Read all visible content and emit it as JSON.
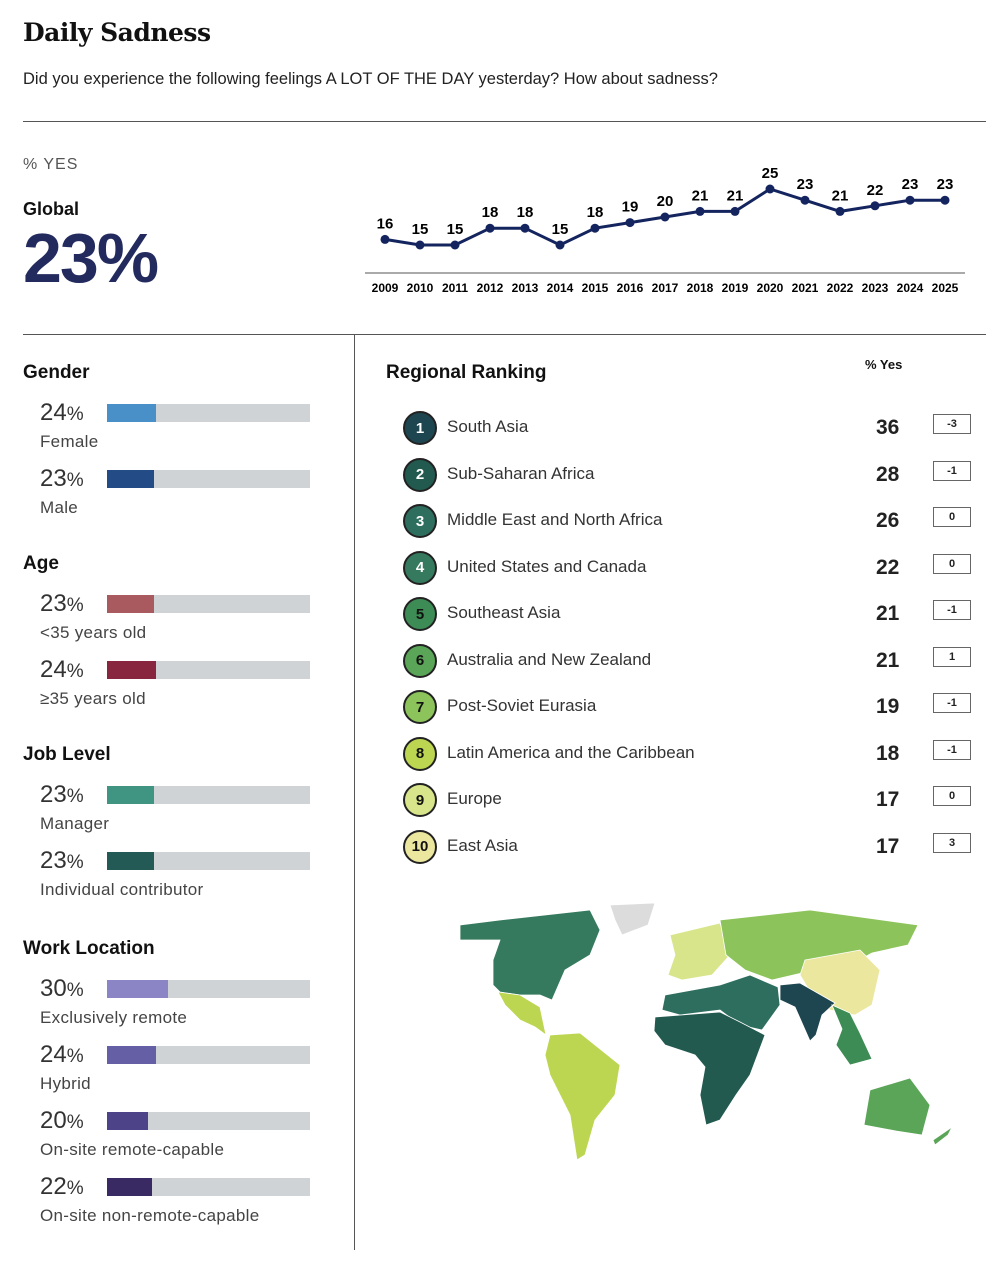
{
  "title": "Daily Sadness",
  "subtitle": "Did you experience the following feelings A LOT OF THE DAY yesterday? How about sadness?",
  "pct_yes_label": "% YES",
  "global": {
    "label": "Global",
    "value": "23%"
  },
  "chart_data": {
    "type": "line",
    "x": [
      2009,
      2010,
      2011,
      2012,
      2013,
      2014,
      2015,
      2016,
      2017,
      2018,
      2019,
      2020,
      2021,
      2022,
      2023,
      2024,
      2025
    ],
    "values": [
      16,
      15,
      15,
      18,
      18,
      15,
      18,
      19,
      20,
      21,
      21,
      25,
      23,
      21,
      22,
      23,
      23
    ],
    "ylabel": "% Yes",
    "color": "#14245e"
  },
  "sections": [
    {
      "title": "Gender",
      "items": [
        {
          "value": "24",
          "unit": "%",
          "label": "Female",
          "pct": 24,
          "color": "#4a90c8"
        },
        {
          "value": "23",
          "unit": "%",
          "label": "Male",
          "pct": 23,
          "color": "#234c86"
        }
      ]
    },
    {
      "title": "Age",
      "items": [
        {
          "value": "23",
          "unit": "%",
          "label": "<35 years old",
          "pct": 23,
          "color": "#a85a5f"
        },
        {
          "value": "24",
          "unit": "%",
          "label": "≥35 years old",
          "pct": 24,
          "color": "#882640"
        }
      ]
    },
    {
      "title": "Job Level",
      "items": [
        {
          "value": "23",
          "unit": "%",
          "label": "Manager",
          "pct": 23,
          "color": "#3f9582"
        },
        {
          "value": "23",
          "unit": "%",
          "label": "Individual contributor",
          "pct": 23,
          "color": "#245a55"
        }
      ]
    },
    {
      "title": "Work Location",
      "items": [
        {
          "value": "30",
          "unit": "%",
          "label": "Exclusively remote",
          "pct": 30,
          "color": "#8b85c5"
        },
        {
          "value": "24",
          "unit": "%",
          "label": "Hybrid",
          "pct": 24,
          "color": "#6560a5"
        },
        {
          "value": "20",
          "unit": "%",
          "label": "On-site remote-capable",
          "pct": 20,
          "color": "#4c4388"
        },
        {
          "value": "22",
          "unit": "%",
          "label": "On-site non-remote-capable",
          "pct": 22,
          "color": "#3a2a64"
        }
      ]
    }
  ],
  "ranking": {
    "title": "Regional Ranking",
    "col_label": "% Yes",
    "rows": [
      {
        "rank": "1",
        "name": "South Asia",
        "value": "36",
        "change": "-3",
        "color": "#1e4650",
        "text": "#fff"
      },
      {
        "rank": "2",
        "name": "Sub-Saharan Africa",
        "value": "28",
        "change": "-1",
        "color": "#235a50",
        "text": "#fff"
      },
      {
        "rank": "3",
        "name": "Middle East and North Africa",
        "value": "26",
        "change": "0",
        "color": "#2e6e5e",
        "text": "#fff"
      },
      {
        "rank": "4",
        "name": "United States and Canada",
        "value": "22",
        "change": "0",
        "color": "#357a5e",
        "text": "#fff"
      },
      {
        "rank": "5",
        "name": "Southeast Asia",
        "value": "21",
        "change": "-1",
        "color": "#3e8c55",
        "text": "#111"
      },
      {
        "rank": "6",
        "name": "Australia and New Zealand",
        "value": "21",
        "change": "1",
        "color": "#5aa557",
        "text": "#111"
      },
      {
        "rank": "7",
        "name": "Post-Soviet Eurasia",
        "value": "19",
        "change": "-1",
        "color": "#8cc35a",
        "text": "#111"
      },
      {
        "rank": "8",
        "name": "Latin America and the Caribbean",
        "value": "18",
        "change": "-1",
        "color": "#bcd651",
        "text": "#111"
      },
      {
        "rank": "9",
        "name": "Europe",
        "value": "17",
        "change": "0",
        "color": "#d9e58a",
        "text": "#111"
      },
      {
        "rank": "10",
        "name": "East Asia",
        "value": "17",
        "change": "3",
        "color": "#ece79e",
        "text": "#111"
      }
    ]
  }
}
